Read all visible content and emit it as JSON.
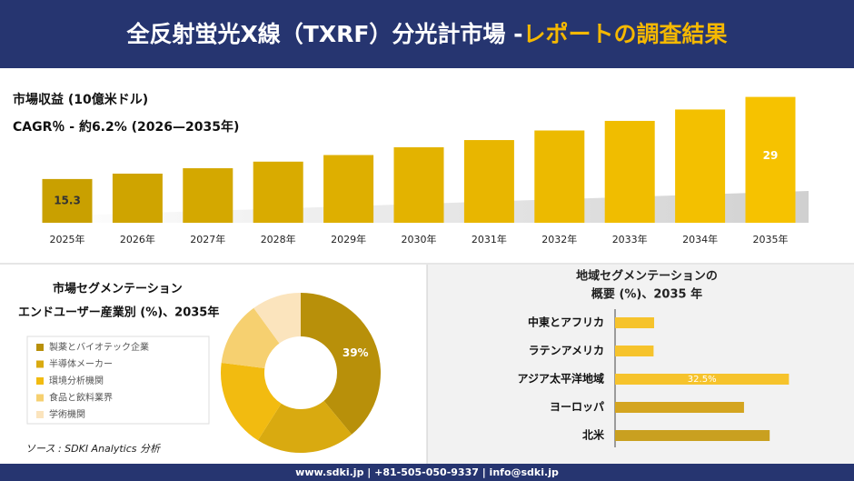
{
  "header": {
    "title_main": "全反射蛍光X線（TXRF）分光計市場 -",
    "title_accent": "レポートの調査結果"
  },
  "chart_data": [
    {
      "type": "bar",
      "title": [
        "市場収益 (10億米ドル)",
        "CAGR％ - 約6.2% (2026—2035年)"
      ],
      "categories": [
        "2025年",
        "2026年",
        "2027年",
        "2028年",
        "2029年",
        "2030年",
        "2031年",
        "2032年",
        "2033年",
        "2034年",
        "2035年"
      ],
      "values": [
        15.3,
        16.2,
        17.1,
        18.2,
        19.3,
        20.6,
        21.8,
        23.4,
        25.0,
        26.9,
        29
      ],
      "value_labels": [
        "15.3",
        null,
        null,
        null,
        null,
        null,
        null,
        null,
        null,
        null,
        "29"
      ],
      "colors": [
        "#c9a000",
        "#cfa400",
        "#d4a800",
        "#d9ab00",
        "#deaf00",
        "#e3b300",
        "#e8b600",
        "#ecba00",
        "#f0bd00",
        "#f3c000",
        "#f6c200"
      ],
      "ylim": [
        8,
        30
      ]
    },
    {
      "type": "donut",
      "title": [
        "市場セグメンテーション",
        "エンドユーザー産業別 (%)、2035年"
      ],
      "categories": [
        "製薬とバイオテック企業",
        "半導体メーカー",
        "環境分析機関",
        "食品と飲料業界",
        "学術機関"
      ],
      "values": [
        39,
        20,
        18,
        13,
        10
      ],
      "value_labels": [
        "39%",
        null,
        null,
        null,
        null
      ],
      "colors": [
        "#b8900a",
        "#d9aa10",
        "#f2bb10",
        "#f6d070",
        "#fbe4bd"
      ]
    },
    {
      "type": "barh",
      "title": [
        "地域セグメンテーションの",
        "概要 (%)、2035 年"
      ],
      "categories": [
        "中東とアフリカ",
        "ラテンアメリカ",
        "アジア太平洋地域",
        "ヨーロッパ",
        "北米"
      ],
      "values": [
        7.3,
        7.2,
        32.5,
        24.1,
        28.9
      ],
      "value_labels": [
        null,
        null,
        "32.5%",
        null,
        null
      ],
      "colors": [
        "#f6c32c",
        "#f6c32c",
        "#f6c32c",
        "#d4a520",
        "#c9a020"
      ],
      "xlim": [
        0,
        45
      ]
    }
  ],
  "source": "ソース : SDKI Analytics 分析",
  "footer": "www.sdki.jp | +81-505-050-9337 | info@sdki.jp"
}
